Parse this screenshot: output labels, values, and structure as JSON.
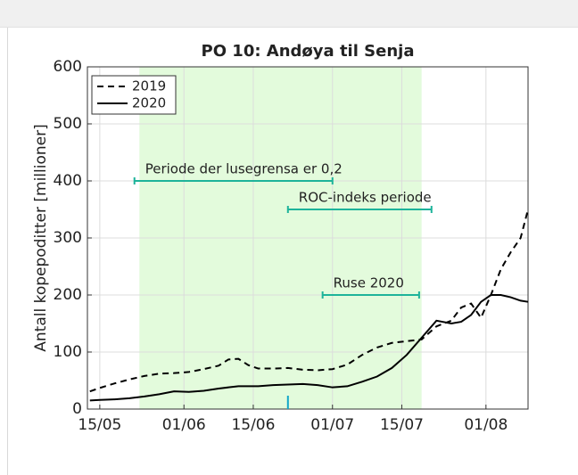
{
  "chart_data": {
    "type": "line",
    "title": "PO 10: Andøya til Senja",
    "y_label": "Antall kopepoditter [millioner]",
    "x": [
      134,
      136,
      139,
      142,
      145,
      148,
      151,
      154,
      157,
      160,
      162,
      164,
      166,
      168,
      171,
      174,
      177,
      180,
      183,
      186,
      189,
      192,
      195,
      198,
      201,
      204,
      207,
      209,
      211,
      213,
      215,
      217,
      219,
      221,
      222.5
    ],
    "series": [
      {
        "name": "2019",
        "color": "#000000",
        "dash": true,
        "values": [
          31,
          37,
          45,
          52,
          58,
          62,
          63,
          65,
          70,
          76,
          87,
          88,
          77,
          71,
          71,
          72,
          69,
          68,
          70,
          78,
          95,
          108,
          116,
          119,
          122,
          145,
          155,
          178,
          185,
          160,
          200,
          245,
          275,
          300,
          350
        ]
      },
      {
        "name": "2020",
        "color": "#000000",
        "dash": false,
        "values": [
          15,
          16,
          17,
          19,
          22,
          26,
          31,
          30,
          32,
          36,
          38,
          40,
          40,
          40,
          42,
          43,
          44,
          42,
          38,
          40,
          48,
          57,
          72,
          95,
          125,
          155,
          150,
          153,
          165,
          188,
          200,
          200,
          196,
          190,
          188
        ]
      }
    ],
    "xlim": [
      133.5,
      222.5
    ],
    "xticks": [
      {
        "value": 136,
        "label": "15/05"
      },
      {
        "value": 153,
        "label": "01/06"
      },
      {
        "value": 167,
        "label": "15/06"
      },
      {
        "value": 183,
        "label": "01/07"
      },
      {
        "value": 197,
        "label": "15/07"
      },
      {
        "value": 214,
        "label": "01/08"
      }
    ],
    "ylim": [
      0,
      600
    ],
    "yticks": [
      0,
      100,
      200,
      300,
      400,
      500,
      600
    ],
    "grid": true,
    "legend": "upper left",
    "shade": {
      "x": [
        144,
        201
      ],
      "color": "#e3fbdc"
    },
    "annotations": [
      {
        "label": "Periode der lusegrensa er 0,2",
        "x": [
          143,
          183
        ],
        "y": 400
      },
      {
        "label": "ROC-indeks periode",
        "x": [
          174,
          203
        ],
        "y": 350
      },
      {
        "label": "Ruse 2020",
        "x": [
          181,
          200.5
        ],
        "y": 200
      }
    ],
    "annotation_color": "#1db39a",
    "marker_x": 174,
    "marker_color": "#12a6c8"
  }
}
